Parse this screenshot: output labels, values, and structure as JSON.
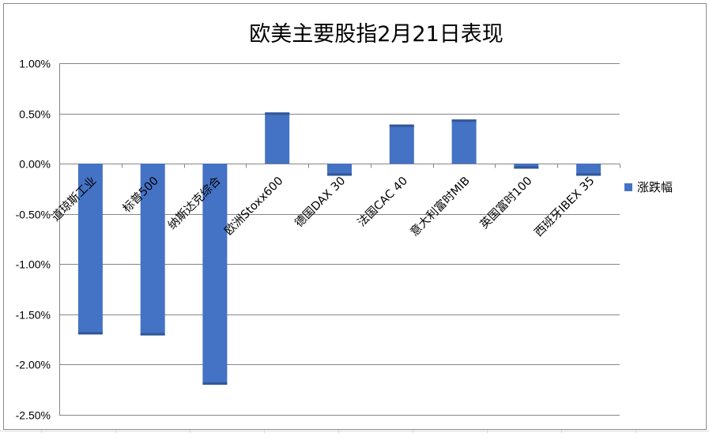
{
  "chart_data": {
    "type": "bar",
    "title": "欧美主要股指2月21日表现",
    "categories": [
      "道琼斯工业",
      "标普500",
      "纳斯达克综合",
      "欧洲Stoxx600",
      "德国DAX 30",
      "法国CAC 40",
      "意大利富时MIB",
      "英国富时100",
      "西班牙IBEX 35"
    ],
    "series": [
      {
        "name": "涨跌幅",
        "values": [
          -1.7,
          -1.71,
          -2.2,
          0.51,
          -0.12,
          0.39,
          0.44,
          -0.05,
          -0.12
        ],
        "color": "#4472C4"
      }
    ],
    "ylim": [
      -2.5,
      1.0
    ],
    "yticks": [
      "1.00%",
      "0.50%",
      "0.00%",
      "-0.50%",
      "-1.00%",
      "-1.50%",
      "-2.00%",
      "-2.50%"
    ],
    "grid": true,
    "legend_position": "right",
    "xlabel": "",
    "ylabel": ""
  }
}
